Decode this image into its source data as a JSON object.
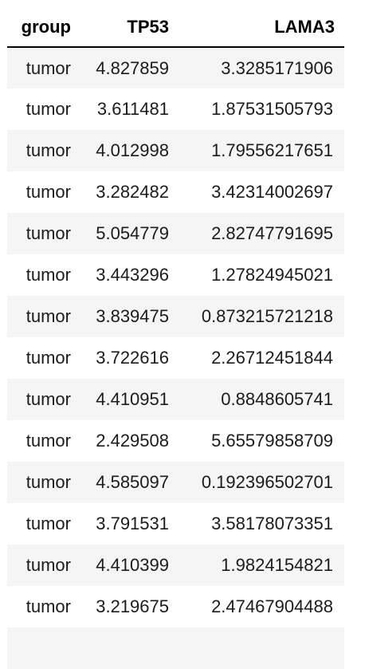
{
  "table": {
    "columns": [
      "group",
      "TP53",
      "LAMA3"
    ],
    "rows": [
      [
        "tumor",
        "4.827859",
        "3.3285171906"
      ],
      [
        "tumor",
        "3.611481",
        "1.87531505793"
      ],
      [
        "tumor",
        "4.012998",
        "1.79556217651"
      ],
      [
        "tumor",
        "3.282482",
        "3.42314002697"
      ],
      [
        "tumor",
        "5.054779",
        "2.82747791695"
      ],
      [
        "tumor",
        "3.443296",
        "1.27824945021"
      ],
      [
        "tumor",
        "3.839475",
        "0.873215721218"
      ],
      [
        "tumor",
        "3.722616",
        "2.26712451844"
      ],
      [
        "tumor",
        "4.410951",
        "0.8848605741"
      ],
      [
        "tumor",
        "2.429508",
        "5.65579858709"
      ],
      [
        "tumor",
        "4.585097",
        "0.192396502701"
      ],
      [
        "tumor",
        "3.791531",
        "3.58178073351"
      ],
      [
        "tumor",
        "4.410399",
        "1.9824154821"
      ],
      [
        "tumor",
        "3.219675",
        "2.47467904488"
      ],
      [
        "",
        "",
        ""
      ]
    ]
  }
}
